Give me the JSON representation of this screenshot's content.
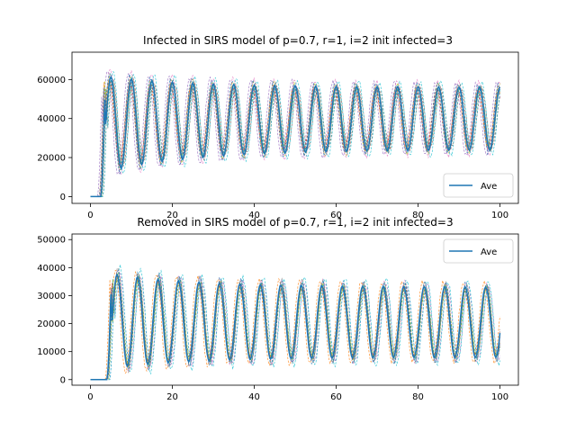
{
  "chart_data": [
    {
      "type": "line",
      "title": "Infected in SIRS model of p=0.7, r=1, i=2 init infected=3",
      "xlim": [
        -4.5,
        104.5
      ],
      "ylim": [
        -3500,
        74000
      ],
      "xticks": [
        0,
        20,
        40,
        60,
        80,
        100
      ],
      "xtick_labels": [
        "0",
        "20",
        "40",
        "60",
        "80",
        "100"
      ],
      "yticks": [
        0,
        20000,
        40000,
        60000
      ],
      "ytick_labels": [
        "0",
        "20000",
        "40000",
        "60000"
      ],
      "legend": {
        "placement": "lower-right",
        "entries": [
          "Ave"
        ]
      },
      "grid": false,
      "runs_style": "thin dashed multicolored individual runs",
      "series": [
        {
          "name": "Ave",
          "color": "#1f77b4",
          "period": 5.0,
          "onset": 2.5,
          "first_peak": 62000,
          "mean_peak": 56000,
          "mean_trough": 24000
        }
      ]
    },
    {
      "type": "line",
      "title": "Removed in SIRS model of p=0.7, r=1, i=2 init infected=3",
      "xlim": [
        -4.5,
        104.5
      ],
      "ylim": [
        -2000,
        52000
      ],
      "xticks": [
        0,
        20,
        40,
        60,
        80,
        100
      ],
      "xtick_labels": [
        "0",
        "20",
        "40",
        "60",
        "80",
        "100"
      ],
      "yticks": [
        0,
        10000,
        20000,
        30000,
        40000,
        50000
      ],
      "ytick_labels": [
        "0",
        "10000",
        "20000",
        "30000",
        "40000",
        "50000"
      ],
      "legend": {
        "placement": "upper-right",
        "entries": [
          "Ave"
        ]
      },
      "grid": false,
      "runs_style": "thin dashed multicolored individual runs",
      "series": [
        {
          "name": "Ave",
          "color": "#1f77b4",
          "period": 5.0,
          "onset": 4.0,
          "first_peak": 38000,
          "mean_peak": 33000,
          "mean_trough": 8000
        }
      ]
    }
  ],
  "run_colors": [
    "#ff7f0e",
    "#2ca02c",
    "#d62728",
    "#9467bd",
    "#8c564b",
    "#e377c2",
    "#bcbd22",
    "#17becf",
    "#7f7f7f",
    "#1f77b4"
  ]
}
